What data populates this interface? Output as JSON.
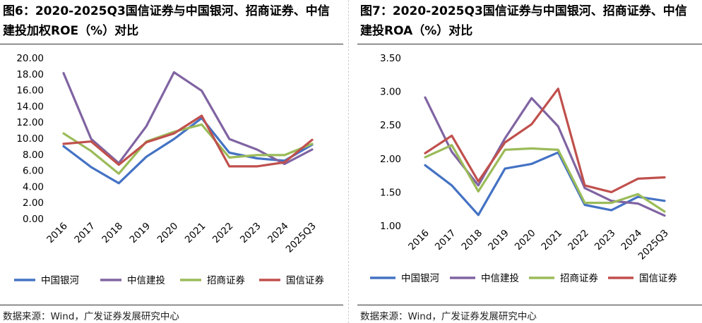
{
  "charts": [
    {
      "title": "图6：2020-2025Q3国信证券与中国银河、招商证券、中信建投加权ROE（%）对比",
      "source": "数据来源：Wind，广发证券发展研究中心"
    },
    {
      "title": "图7：2020-2025Q3国信证券与中国银河、招商证券、中信建投ROA（%）对比",
      "source": "数据来源：Wind，广发证券发展研究中心"
    }
  ],
  "chart_data": [
    {
      "type": "line",
      "title": "图6：2020-2025Q3国信证券与中国银河、招商证券、中信建投加权ROE（%）对比",
      "categories": [
        "2016",
        "2017",
        "2018",
        "2019",
        "2020",
        "2021",
        "2022",
        "2023",
        "2024",
        "2025Q3"
      ],
      "yticks": [
        "0.00",
        "2.00",
        "4.00",
        "6.00",
        "8.00",
        "10.00",
        "12.00",
        "14.00",
        "16.00",
        "18.00",
        "20.00"
      ],
      "ylim": [
        0,
        20
      ],
      "grid": false,
      "legend": "bottom",
      "series": [
        {
          "name": "中国银河",
          "color": "#4472C4",
          "values": [
            9.0,
            6.4,
            4.4,
            7.7,
            9.9,
            12.5,
            8.2,
            7.5,
            7.2,
            9.2
          ]
        },
        {
          "name": "中信建投",
          "color": "#8064A2",
          "values": [
            18.1,
            9.9,
            6.9,
            11.5,
            18.2,
            15.9,
            9.9,
            8.6,
            6.8,
            8.6
          ]
        },
        {
          "name": "招商证券",
          "color": "#9BBB59",
          "values": [
            10.6,
            8.4,
            5.6,
            9.6,
            10.8,
            11.7,
            7.6,
            7.9,
            7.9,
            9.3
          ]
        },
        {
          "name": "国信证券",
          "color": "#C0504D",
          "values": [
            9.3,
            9.6,
            6.7,
            9.5,
            10.6,
            12.8,
            6.5,
            6.5,
            7.0,
            9.8
          ]
        }
      ]
    },
    {
      "type": "line",
      "title": "图7：2020-2025Q3国信证券与中国银河、招商证券、中信建投ROA（%）对比",
      "categories": [
        "2016",
        "2017",
        "2018",
        "2019",
        "2020",
        "2021",
        "2022",
        "2023",
        "2024",
        "2025Q3"
      ],
      "yticks": [
        "1.00",
        "1.50",
        "2.00",
        "2.50",
        "3.00",
        "3.50"
      ],
      "ylim": [
        1.0,
        3.5
      ],
      "grid": false,
      "legend": "bottom",
      "series": [
        {
          "name": "中国银河",
          "color": "#4472C4",
          "values": [
            1.9,
            1.6,
            1.16,
            1.85,
            1.92,
            2.09,
            1.31,
            1.23,
            1.43,
            1.37
          ]
        },
        {
          "name": "中信建投",
          "color": "#8064A2",
          "values": [
            2.91,
            2.1,
            1.6,
            2.3,
            2.9,
            2.48,
            1.56,
            1.37,
            1.33,
            1.15
          ]
        },
        {
          "name": "招商证券",
          "color": "#9BBB59",
          "values": [
            2.02,
            2.2,
            1.51,
            2.13,
            2.15,
            2.13,
            1.34,
            1.34,
            1.47,
            1.21
          ]
        },
        {
          "name": "国信证券",
          "color": "#C0504D",
          "values": [
            2.08,
            2.34,
            1.66,
            2.24,
            2.51,
            3.04,
            1.6,
            1.5,
            1.7,
            1.72
          ]
        }
      ]
    }
  ]
}
